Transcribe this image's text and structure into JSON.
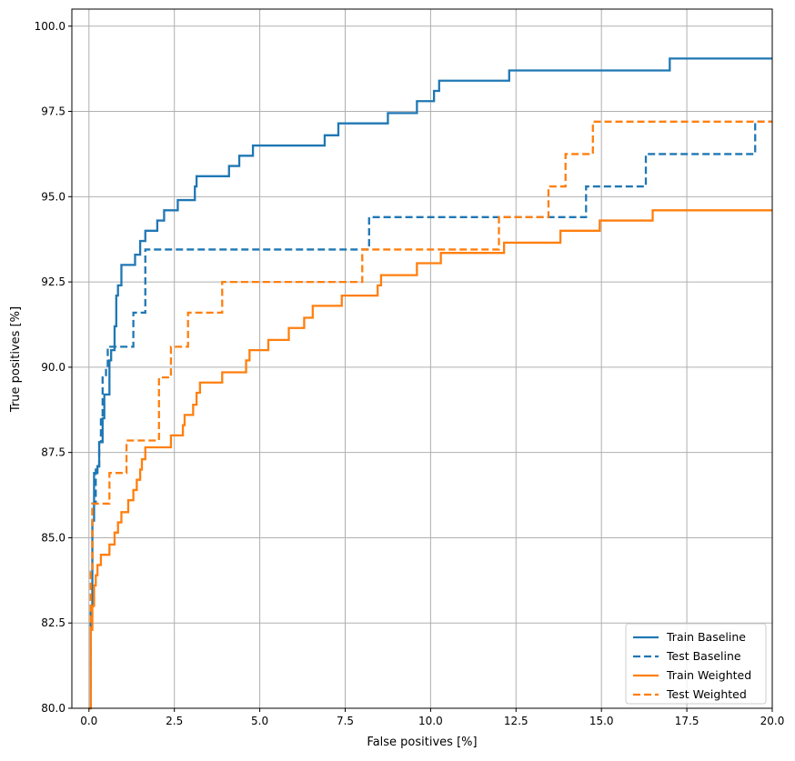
{
  "chart_data": {
    "type": "line",
    "title": "",
    "xlabel": "False positives [%]",
    "ylabel": "True positives [%]",
    "xlim": [
      -0.5,
      20
    ],
    "ylim": [
      80,
      100.5
    ],
    "xticks": [
      "0.0",
      "2.5",
      "5.0",
      "7.5",
      "10.0",
      "12.5",
      "15.0",
      "17.5",
      "20.0"
    ],
    "yticks": [
      "80.0",
      "82.5",
      "85.0",
      "87.5",
      "90.0",
      "92.5",
      "95.0",
      "97.5",
      "100.0"
    ],
    "grid": true,
    "legend_position": "lower-right",
    "series": [
      {
        "name": "Train Baseline",
        "color": "#1f77b4",
        "dash": "solid",
        "x": [
          0,
          0.05,
          0.1,
          0.15,
          0.25,
          0.3,
          0.4,
          0.45,
          0.6,
          0.65,
          0.75,
          0.8,
          0.85,
          0.95,
          1.35,
          1.5,
          1.65,
          2.0,
          2.2,
          2.6,
          3.1,
          3.15,
          4.1,
          4.4,
          4.8,
          6.9,
          7.3,
          8.75,
          9.6,
          10.1,
          10.25,
          12.3,
          17.0,
          20
        ],
        "y": [
          80,
          83,
          85.5,
          86.9,
          87.1,
          87.8,
          88.5,
          89.2,
          90.2,
          90.5,
          91.2,
          92.1,
          92.4,
          93.0,
          93.3,
          93.7,
          94.0,
          94.3,
          94.6,
          94.9,
          95.3,
          95.6,
          95.9,
          96.2,
          96.5,
          96.8,
          97.15,
          97.45,
          97.8,
          98.1,
          98.4,
          98.7,
          99.05,
          99.05
        ]
      },
      {
        "name": "Test Baseline",
        "color": "#1f77b4",
        "dash": "dashed",
        "x": [
          0,
          0.05,
          0.1,
          0.2,
          0.3,
          0.35,
          0.4,
          0.5,
          0.55,
          1.3,
          1.65,
          8.2,
          14.55,
          16.3,
          19.5,
          20
        ],
        "y": [
          80,
          84,
          86,
          87,
          87.8,
          88.5,
          89.7,
          90.0,
          90.6,
          91.6,
          93.45,
          94.4,
          95.3,
          96.25,
          97.2,
          97.2
        ]
      },
      {
        "name": "Train Weighted",
        "color": "#ff7f0e",
        "dash": "solid",
        "x": [
          0,
          0.05,
          0.1,
          0.15,
          0.2,
          0.25,
          0.35,
          0.6,
          0.75,
          0.85,
          0.95,
          1.15,
          1.3,
          1.4,
          1.5,
          1.55,
          1.65,
          2.4,
          2.75,
          2.8,
          3.05,
          3.15,
          3.25,
          3.9,
          4.6,
          4.7,
          5.25,
          5.85,
          6.3,
          6.55,
          7.4,
          8.45,
          8.55,
          9.6,
          10.3,
          12.15,
          13.8,
          14.95,
          16.5,
          20
        ],
        "y": [
          80,
          82.3,
          83,
          83.6,
          83.9,
          84.2,
          84.5,
          84.8,
          85.15,
          85.45,
          85.75,
          86.1,
          86.4,
          86.7,
          87.0,
          87.3,
          87.65,
          88.0,
          88.3,
          88.6,
          88.9,
          89.25,
          89.55,
          89.85,
          90.2,
          90.5,
          90.8,
          91.15,
          91.45,
          91.8,
          92.1,
          92.4,
          92.7,
          93.05,
          93.35,
          93.65,
          94.0,
          94.3,
          94.6,
          94.6
        ]
      },
      {
        "name": "Test Weighted",
        "color": "#ff7f0e",
        "dash": "dashed",
        "x": [
          0,
          0.05,
          0.1,
          0.6,
          1.1,
          2.05,
          2.4,
          2.9,
          3.9,
          8.0,
          12.0,
          13.45,
          13.95,
          14.75,
          20
        ],
        "y": [
          80,
          84,
          86.0,
          86.9,
          87.85,
          89.7,
          90.6,
          91.6,
          92.5,
          93.45,
          94.4,
          95.3,
          96.25,
          97.2,
          97.2
        ]
      }
    ]
  }
}
